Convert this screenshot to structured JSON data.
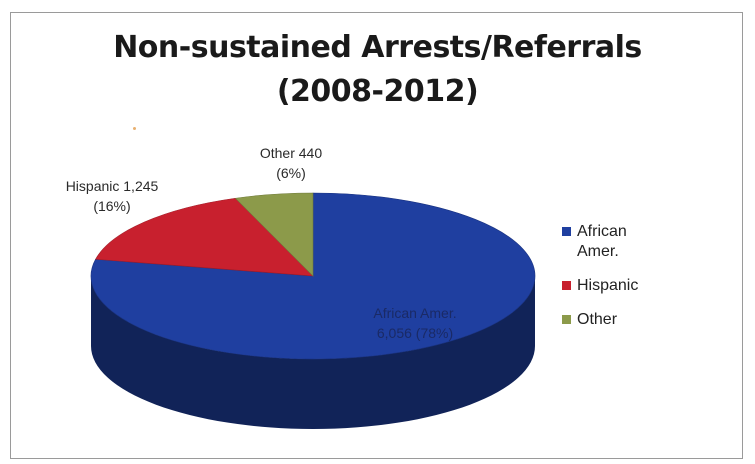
{
  "chart_data": {
    "type": "pie",
    "title": "Non-sustained Arrests/Referrals\n(2008-2012)",
    "title_lines": [
      "Non-sustained Arrests/Referrals",
      "(2008-2012)"
    ],
    "slices": [
      {
        "name": "African Amer.",
        "value": 6056,
        "percent": 78,
        "color": "#1f3fa0",
        "label_lines": [
          "African Amer.",
          "6,056 (78%)"
        ]
      },
      {
        "name": "Hispanic",
        "value": 1245,
        "percent": 16,
        "color": "#c8202e",
        "label_lines": [
          "Hispanic 1,245",
          "(16%)"
        ]
      },
      {
        "name": "Other",
        "value": 440,
        "percent": 6,
        "color": "#8c9a4a",
        "label_lines": [
          "Other 440",
          "(6%)"
        ]
      }
    ],
    "legend": {
      "position": "right",
      "items": [
        {
          "label": "African Amer.",
          "color": "#1f3fa0"
        },
        {
          "label": "Hispanic",
          "color": "#c8202e"
        },
        {
          "label": "Other",
          "color": "#8c9a4a"
        }
      ]
    },
    "style": "3d"
  }
}
